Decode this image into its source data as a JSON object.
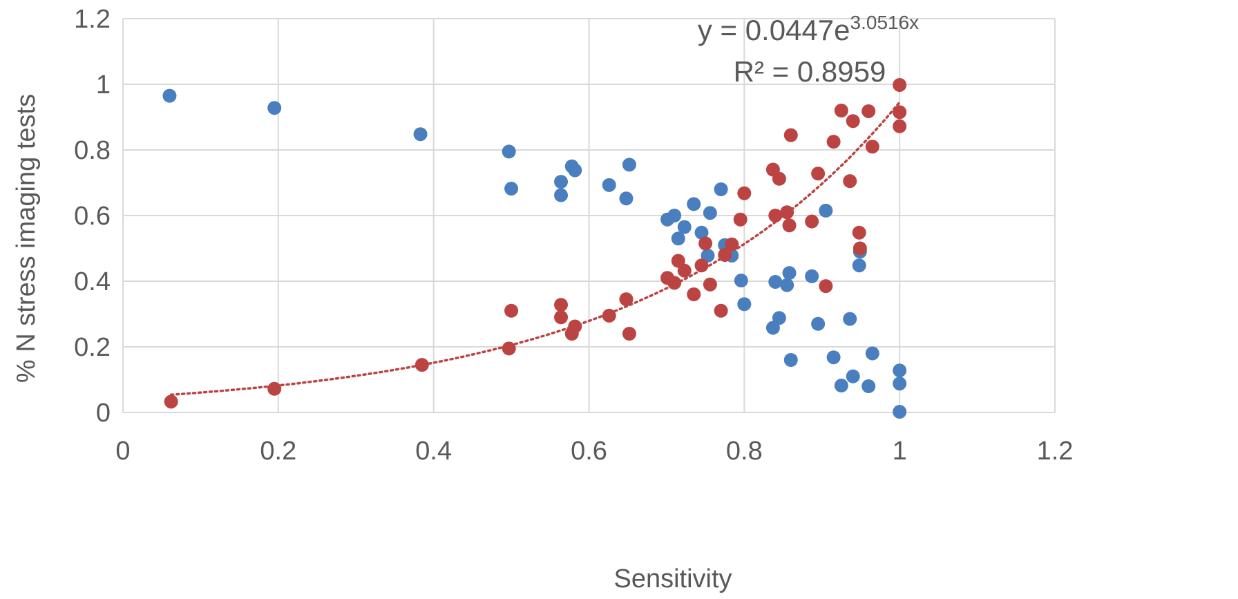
{
  "chart_data": {
    "type": "scatter",
    "title": "",
    "xlabel": "Sensitivity",
    "ylabel": "% N stress imaging tests",
    "xlim": [
      0,
      1.2
    ],
    "ylim": [
      0,
      1.2
    ],
    "x_ticks": [
      "0",
      "0.2",
      "0.4",
      "0.6",
      "0.8",
      "1",
      "1.2"
    ],
    "y_ticks": [
      "0",
      "0.2",
      "0.4",
      "0.6",
      "0.8",
      "1",
      "1.2"
    ],
    "grid": true,
    "legend": "none",
    "colors": {
      "blue": "#4a7fbf",
      "red": "#bb4442",
      "grid": "#d9d9d9",
      "text": "#595959"
    },
    "series": [
      {
        "color": "#4a7fbf",
        "points": [
          [
            0.06,
            0.965
          ],
          [
            0.195,
            0.928
          ],
          [
            0.383,
            0.848
          ],
          [
            0.497,
            0.795
          ],
          [
            0.5,
            0.682
          ],
          [
            0.564,
            0.703
          ],
          [
            0.564,
            0.662
          ],
          [
            0.578,
            0.75
          ],
          [
            0.582,
            0.738
          ],
          [
            0.626,
            0.693
          ],
          [
            0.648,
            0.652
          ],
          [
            0.652,
            0.755
          ],
          [
            0.701,
            0.588
          ],
          [
            0.71,
            0.6
          ],
          [
            0.715,
            0.53
          ],
          [
            0.723,
            0.565
          ],
          [
            0.735,
            0.635
          ],
          [
            0.745,
            0.548
          ],
          [
            0.753,
            0.478
          ],
          [
            0.756,
            0.608
          ],
          [
            0.77,
            0.68
          ],
          [
            0.775,
            0.51
          ],
          [
            0.784,
            0.478
          ],
          [
            0.796,
            0.402
          ],
          [
            0.8,
            0.33
          ],
          [
            0.837,
            0.258
          ],
          [
            0.84,
            0.398
          ],
          [
            0.845,
            0.288
          ],
          [
            0.855,
            0.388
          ],
          [
            0.858,
            0.425
          ],
          [
            0.86,
            0.16
          ],
          [
            0.887,
            0.415
          ],
          [
            0.895,
            0.27
          ],
          [
            0.905,
            0.615
          ],
          [
            0.915,
            0.168
          ],
          [
            0.925,
            0.082
          ],
          [
            0.936,
            0.285
          ],
          [
            0.94,
            0.11
          ],
          [
            0.948,
            0.448
          ],
          [
            0.949,
            0.49
          ],
          [
            0.96,
            0.08
          ],
          [
            0.965,
            0.18
          ],
          [
            1.0,
            0.128
          ],
          [
            1.0,
            0.088
          ],
          [
            1.0,
            0.002
          ]
        ]
      },
      {
        "color": "#bb4442",
        "points": [
          [
            0.062,
            0.033
          ],
          [
            0.195,
            0.072
          ],
          [
            0.385,
            0.145
          ],
          [
            0.497,
            0.195
          ],
          [
            0.5,
            0.31
          ],
          [
            0.564,
            0.328
          ],
          [
            0.564,
            0.29
          ],
          [
            0.578,
            0.24
          ],
          [
            0.582,
            0.262
          ],
          [
            0.626,
            0.295
          ],
          [
            0.648,
            0.345
          ],
          [
            0.652,
            0.24
          ],
          [
            0.701,
            0.41
          ],
          [
            0.71,
            0.395
          ],
          [
            0.715,
            0.462
          ],
          [
            0.723,
            0.432
          ],
          [
            0.735,
            0.36
          ],
          [
            0.745,
            0.448
          ],
          [
            0.75,
            0.515
          ],
          [
            0.756,
            0.39
          ],
          [
            0.77,
            0.31
          ],
          [
            0.775,
            0.48
          ],
          [
            0.784,
            0.512
          ],
          [
            0.795,
            0.588
          ],
          [
            0.8,
            0.668
          ],
          [
            0.837,
            0.74
          ],
          [
            0.84,
            0.6
          ],
          [
            0.845,
            0.712
          ],
          [
            0.855,
            0.61
          ],
          [
            0.858,
            0.57
          ],
          [
            0.86,
            0.845
          ],
          [
            0.887,
            0.582
          ],
          [
            0.895,
            0.728
          ],
          [
            0.905,
            0.385
          ],
          [
            0.915,
            0.825
          ],
          [
            0.925,
            0.92
          ],
          [
            0.936,
            0.705
          ],
          [
            0.94,
            0.888
          ],
          [
            0.948,
            0.548
          ],
          [
            0.949,
            0.5
          ],
          [
            0.96,
            0.918
          ],
          [
            0.965,
            0.81
          ],
          [
            1.0,
            0.998
          ],
          [
            1.0,
            0.915
          ],
          [
            1.0,
            0.872
          ]
        ]
      }
    ],
    "trendline": {
      "type": "exponential",
      "a": 0.0447,
      "b": 3.0516,
      "color": "#bb4442",
      "x_range": [
        0.062,
        1.0
      ],
      "equation_prefix": "y = 0.0447e",
      "equation_exponent": "3.0516x",
      "r2_label": "R² = 0.8959"
    }
  }
}
